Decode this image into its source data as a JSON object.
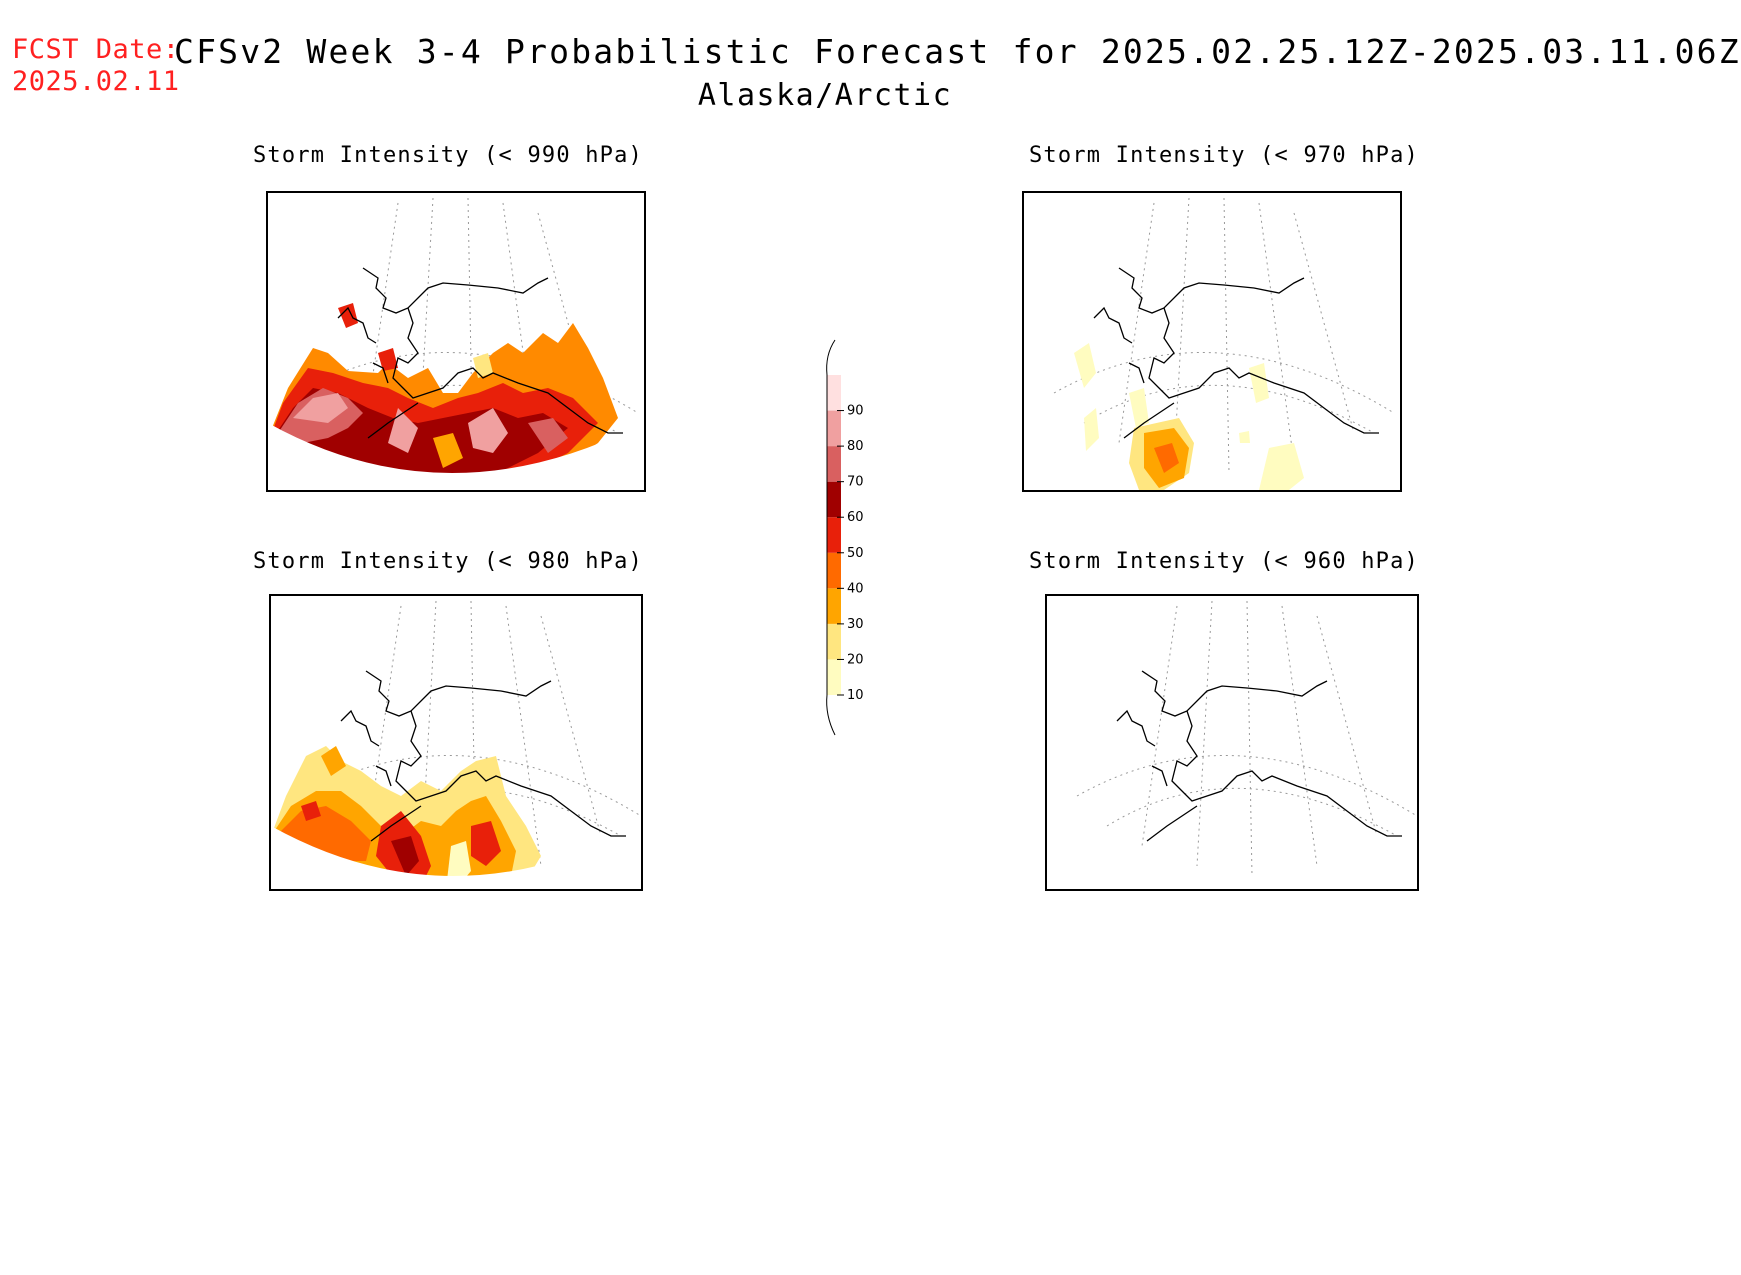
{
  "header": {
    "fcst_label": "FCST Date:",
    "fcst_date": "2025.02.11",
    "title": "CFSv2 Week 3-4 Probabilistic Forecast for 2025.02.25.12Z-2025.03.11.06Z",
    "subtitle": "Alaska/Arctic"
  },
  "panels": [
    {
      "title": "Storm Intensity (< 990 hPa)",
      "coverage": "high"
    },
    {
      "title": "Storm Intensity (< 970 hPa)",
      "coverage": "low"
    },
    {
      "title": "Storm Intensity (< 980 hPa)",
      "coverage": "medium"
    },
    {
      "title": "Storm Intensity (< 960 hPa)",
      "coverage": "none"
    }
  ],
  "colorbar": {
    "levels": [
      "10",
      "20",
      "30",
      "40",
      "50",
      "60",
      "70",
      "80",
      "90"
    ],
    "colors": [
      "#fffcc0",
      "#ffe680",
      "#ffa500",
      "#ff6a00",
      "#e8200a",
      "#a00000",
      "#d96060",
      "#f0a0a0",
      "#ffe0e0"
    ]
  }
}
